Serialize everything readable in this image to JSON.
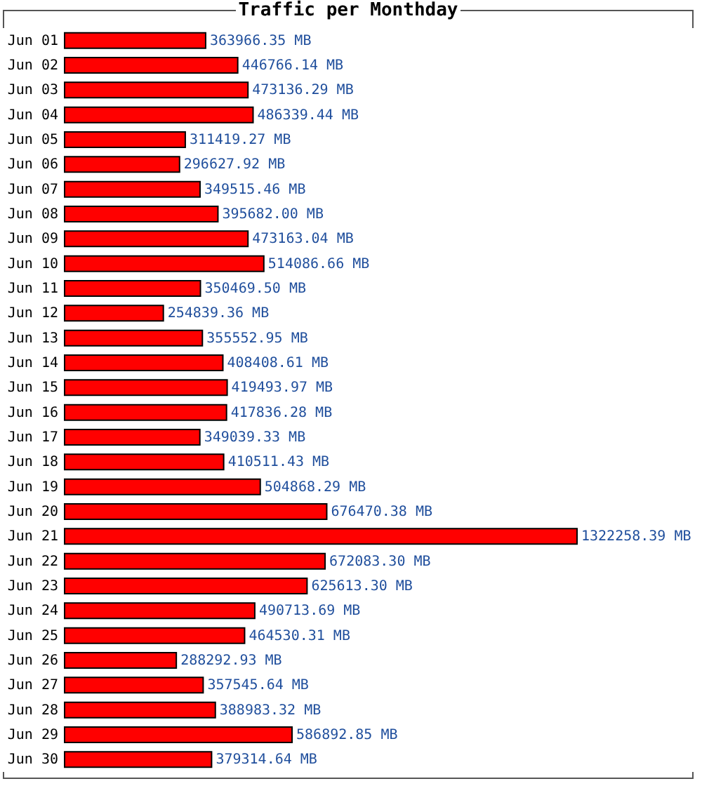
{
  "chart_data": {
    "type": "bar",
    "orientation": "horizontal",
    "title": "Traffic per Monthday",
    "color": "#ff0000",
    "categories": [
      "Jun 01",
      "Jun 02",
      "Jun 03",
      "Jun 04",
      "Jun 05",
      "Jun 06",
      "Jun 07",
      "Jun 08",
      "Jun 09",
      "Jun 10",
      "Jun 11",
      "Jun 12",
      "Jun 13",
      "Jun 14",
      "Jun 15",
      "Jun 16",
      "Jun 17",
      "Jun 18",
      "Jun 19",
      "Jun 20",
      "Jun 21",
      "Jun 22",
      "Jun 23",
      "Jun 24",
      "Jun 25",
      "Jun 26",
      "Jun 27",
      "Jun 28",
      "Jun 29",
      "Jun 30"
    ],
    "values": [
      363966.35,
      446766.14,
      473136.29,
      486339.44,
      311419.27,
      296627.92,
      349515.46,
      395682.0,
      473163.04,
      514086.66,
      350469.5,
      254839.36,
      355552.95,
      408408.61,
      419493.97,
      417836.28,
      349039.33,
      410511.43,
      504868.29,
      676470.38,
      1322258.39,
      672083.3,
      625613.3,
      490713.69,
      464530.31,
      288292.93,
      357545.64,
      388983.32,
      586892.85,
      379314.64
    ],
    "value_labels": [
      "363966.35 MB",
      "446766.14 MB",
      "473136.29 MB",
      "486339.44 MB",
      "311419.27 MB",
      "296627.92 MB",
      "349515.46 MB",
      "395682.00 MB",
      "473163.04 MB",
      "514086.66 MB",
      "350469.50 MB",
      "254839.36 MB",
      "355552.95 MB",
      "408408.61 MB",
      "419493.97 MB",
      "417836.28 MB",
      "349039.33 MB",
      "410511.43 MB",
      "504868.29 MB",
      "676470.38 MB",
      "1322258.39 MB",
      "672083.30 MB",
      "625613.30 MB",
      "490713.69 MB",
      "464530.31 MB",
      "288292.93 MB",
      "357545.64 MB",
      "388983.32 MB",
      "586892.85 MB",
      "379314.64 MB"
    ]
  }
}
